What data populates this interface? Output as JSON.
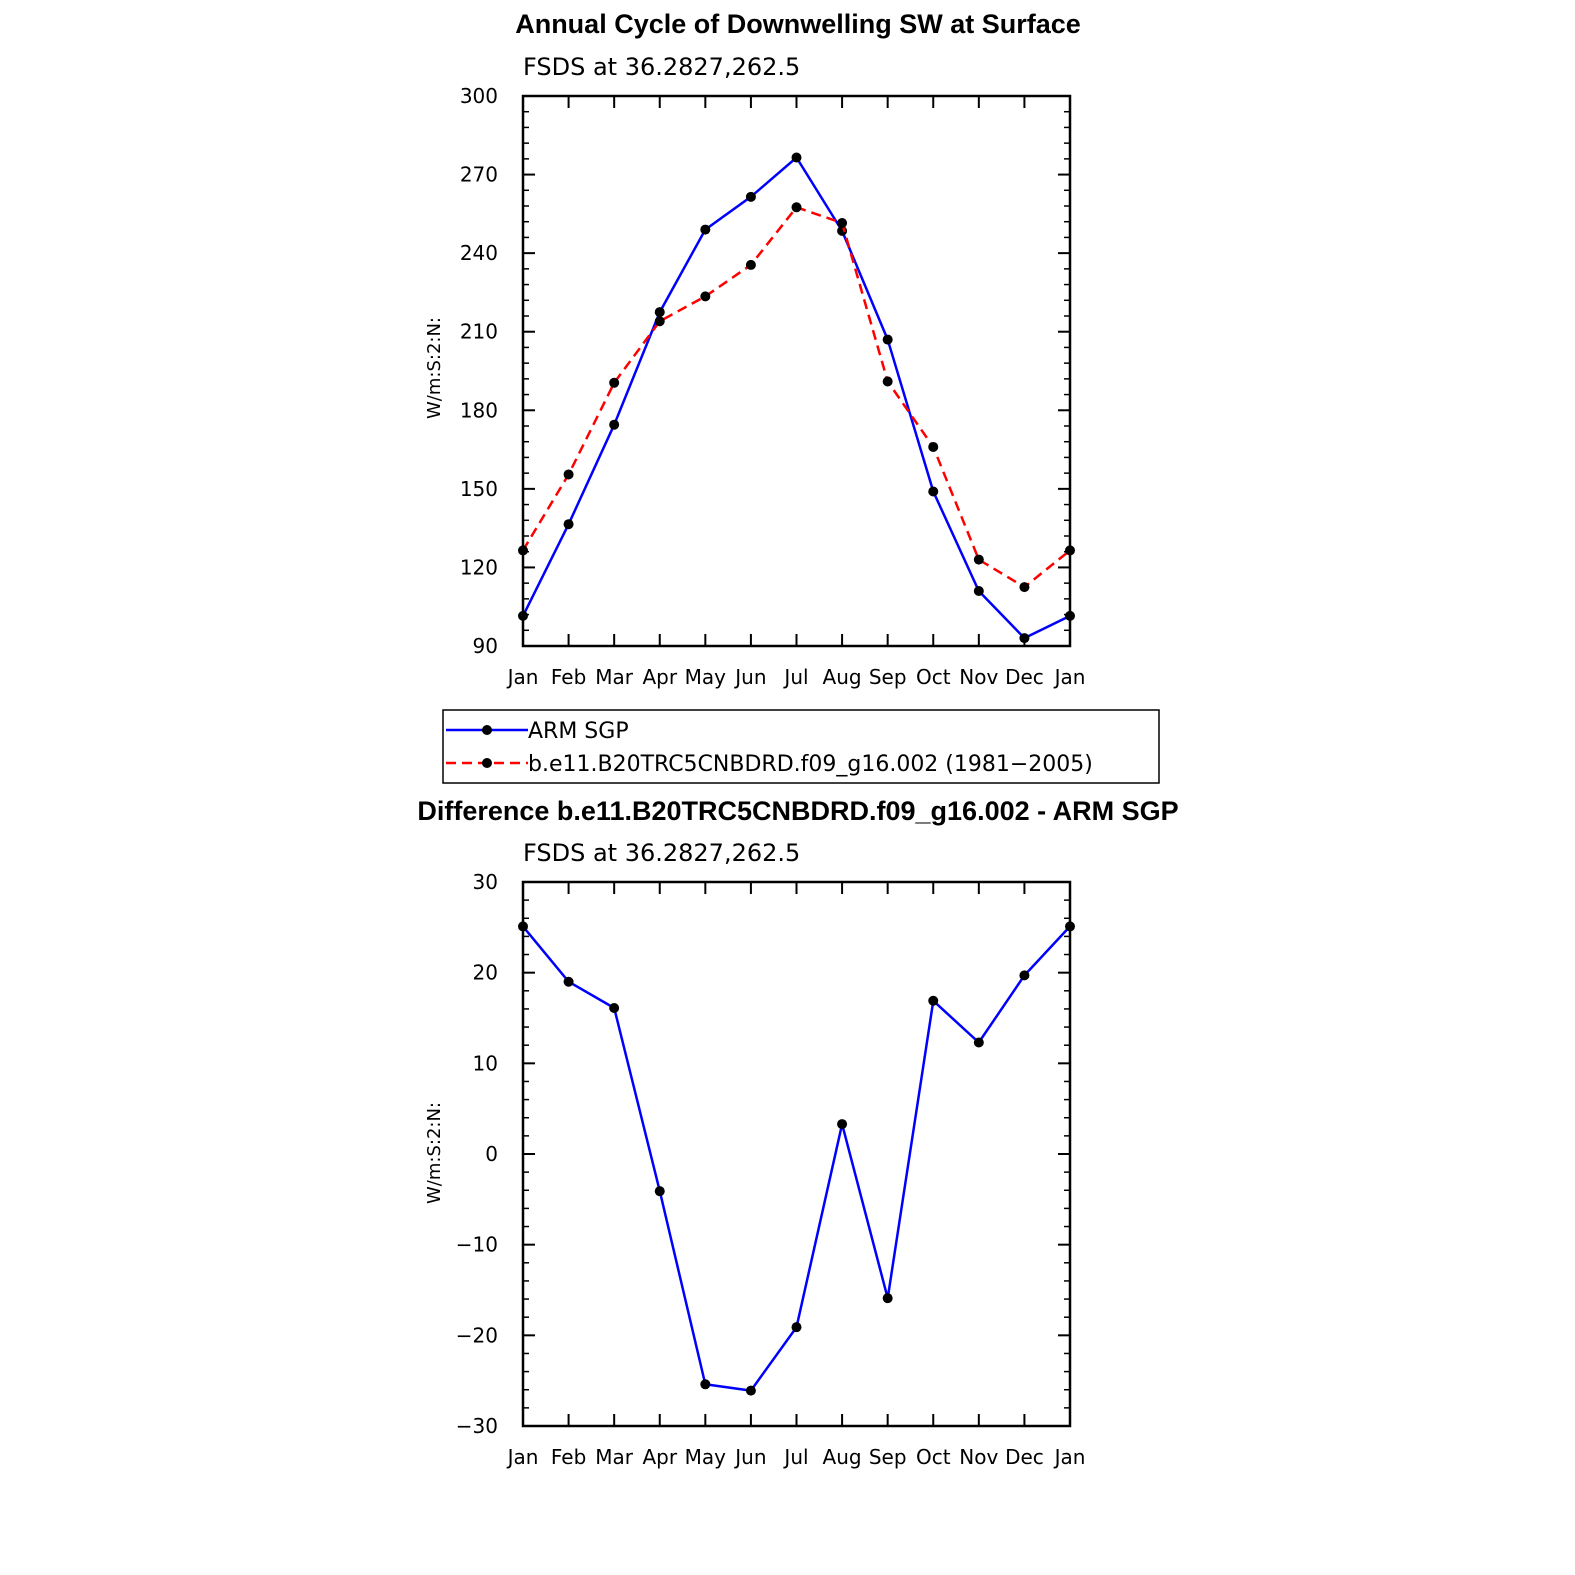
{
  "chart_data": [
    {
      "type": "line",
      "title": "Annual Cycle of Downwelling SW at Surface",
      "subtitle": "FSDS at 36.2827,262.5",
      "ylabel": "W/m:S:2:N:",
      "xlabel": "",
      "categories": [
        "Jan",
        "Feb",
        "Mar",
        "Apr",
        "May",
        "Jun",
        "Jul",
        "Aug",
        "Sep",
        "Oct",
        "Nov",
        "Dec",
        "Jan"
      ],
      "ylim": [
        90,
        300
      ],
      "yticks": [
        "90",
        "120",
        "150",
        "180",
        "210",
        "240",
        "270",
        "300"
      ],
      "series": [
        {
          "name": "ARM SGP",
          "color": "#0000ff",
          "dash": "solid",
          "values": [
            101.5,
            136.5,
            174.5,
            217.5,
            249.0,
            261.5,
            276.5,
            248.5,
            207.0,
            149.0,
            111.0,
            93.0,
            101.5
          ]
        },
        {
          "name": "b.e11.B20TRC5CNBDRD.f09_g16.002 (1981−2005)",
          "color": "#ff0000",
          "dash": "dashed",
          "values": [
            126.5,
            155.5,
            190.5,
            214.0,
            223.5,
            235.5,
            257.5,
            251.5,
            191.0,
            166.0,
            123.0,
            112.5,
            126.5
          ]
        }
      ],
      "legend": "below"
    },
    {
      "type": "line",
      "title": "Difference b.e11.B20TRC5CNBDRD.f09_g16.002 - ARM SGP",
      "subtitle": "FSDS at 36.2827,262.5",
      "ylabel": "W/m:S:2:N:",
      "xlabel": "",
      "categories": [
        "Jan",
        "Feb",
        "Mar",
        "Apr",
        "May",
        "Jun",
        "Jul",
        "Aug",
        "Sep",
        "Oct",
        "Nov",
        "Dec",
        "Jan"
      ],
      "ylim": [
        -30,
        30
      ],
      "yticks": [
        "−30",
        "−20",
        "−10",
        "0",
        "10",
        "20",
        "30"
      ],
      "series": [
        {
          "color": "#0000ff",
          "dash": "solid",
          "values": [
            25.1,
            19.0,
            16.1,
            -4.1,
            -25.4,
            -26.1,
            -19.1,
            3.3,
            -15.9,
            16.9,
            12.3,
            19.7,
            25.1
          ]
        }
      ]
    }
  ]
}
